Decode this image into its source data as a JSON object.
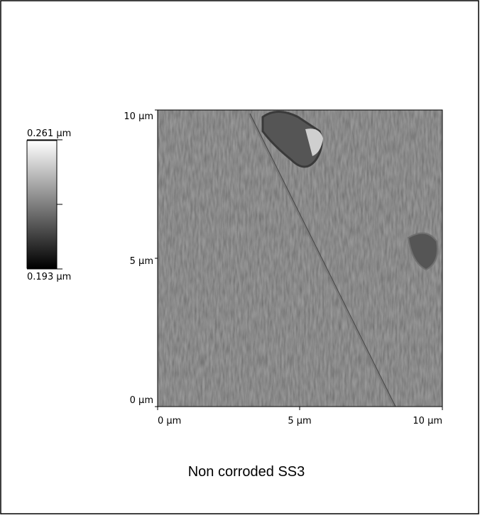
{
  "colorbar": {
    "max_label": "0.261 µm",
    "min_label": "0.193 µm"
  },
  "y_axis": {
    "ticks": [
      "10 µm",
      "5 µm",
      "0 µm"
    ]
  },
  "x_axis": {
    "ticks": [
      "0 µm",
      "5 µm",
      "10 µm"
    ]
  },
  "caption": "Non corroded SS3"
}
